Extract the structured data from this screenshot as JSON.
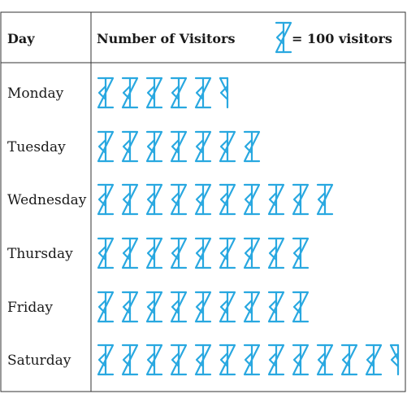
{
  "chart_data": {
    "type": "table",
    "headers": {
      "day": "Day",
      "visitors": "Number of Visitors",
      "key": "= 100 visitors"
    },
    "unit_per_symbol": 100,
    "categories": [
      "Monday",
      "Tuesday",
      "Wednesday",
      "Thursday",
      "Friday",
      "Saturday"
    ],
    "values": [
      550,
      700,
      1000,
      900,
      900,
      1250
    ],
    "symbol_color": "#29a8e0"
  }
}
